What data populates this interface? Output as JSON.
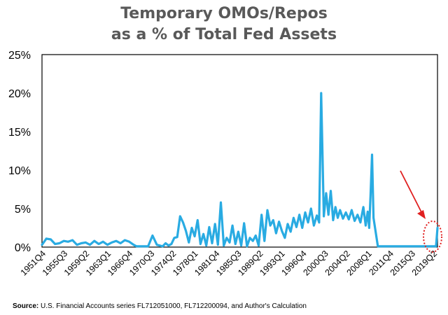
{
  "chart_data": {
    "type": "line",
    "title": "Temporary OMOs/Repos",
    "subtitle": "as a % of Total Fed Assets",
    "ylim": [
      0,
      25
    ],
    "yticks": [
      "0%",
      "5%",
      "10%",
      "15%",
      "20%",
      "25%"
    ],
    "xtick_labels": [
      "1951Q4",
      "1955Q3",
      "1959Q2",
      "1963Q1",
      "1966Q4",
      "1970Q3",
      "1974Q2",
      "1978Q1",
      "1981Q4",
      "1985Q3",
      "1989Q2",
      "1993Q1",
      "1996Q4",
      "2000Q3",
      "2004Q2",
      "2008Q1",
      "2011Q4",
      "2015Q3",
      "2019Q2"
    ],
    "x_start_year": 1951.75,
    "x_end_year": 2019.75,
    "grid": false,
    "line_color": "#29ABE2",
    "series": [
      {
        "x": [
          1951.75,
          1952.5,
          1953.25,
          1954.0,
          1954.75,
          1955.5,
          1956.25,
          1957.0,
          1957.75,
          1958.5,
          1959.25,
          1960.0,
          1960.75,
          1961.5,
          1962.25,
          1963.0,
          1963.75,
          1964.5,
          1965.25,
          1966.0,
          1966.75,
          1967.5,
          1968.0,
          1968.5,
          1969.25,
          1970.0,
          1970.75,
          1971.5,
          1972.0,
          1972.5,
          1973.0,
          1973.5,
          1974.0,
          1974.5,
          1975.0,
          1975.5,
          1976.0,
          1976.5,
          1977.0,
          1977.5,
          1978.0,
          1978.5,
          1979.0,
          1979.5,
          1980.0,
          1980.5,
          1981.0,
          1981.5,
          1982.0,
          1982.5,
          1983.0,
          1983.5,
          1984.0,
          1984.5,
          1985.0,
          1985.5,
          1986.0,
          1986.5,
          1987.0,
          1987.5,
          1988.0,
          1988.5,
          1989.0,
          1989.5,
          1990.0,
          1990.5,
          1991.0,
          1991.5,
          1992.0,
          1992.5,
          1993.0,
          1993.5,
          1994.0,
          1994.5,
          1995.0,
          1995.5,
          1996.0,
          1996.5,
          1997.0,
          1997.5,
          1998.0,
          1998.5,
          1999.0,
          1999.4,
          1999.75,
          2000.2,
          2000.6,
          2001.0,
          2001.4,
          2001.8,
          2002.2,
          2002.6,
          2003.0,
          2003.5,
          2004.0,
          2004.5,
          2005.0,
          2005.5,
          2006.0,
          2006.5,
          2007.0,
          2007.4,
          2007.75,
          2008.0,
          2008.25,
          2008.5,
          2008.75,
          2009.5,
          2011.0,
          2013.0,
          2015.0,
          2017.0,
          2018.5,
          2019.25,
          2019.5,
          2019.75
        ],
        "y": [
          0.3,
          1.1,
          1.0,
          0.4,
          0.5,
          0.8,
          0.7,
          0.9,
          0.3,
          0.5,
          0.6,
          0.3,
          0.8,
          0.4,
          0.7,
          0.3,
          0.6,
          0.8,
          0.5,
          0.9,
          0.7,
          0.3,
          0.1,
          0.1,
          0.1,
          0.1,
          1.5,
          0.3,
          0.2,
          0.1,
          0.5,
          0.2,
          0.4,
          1.2,
          1.3,
          4.0,
          3.2,
          2.1,
          0.6,
          2.5,
          1.4,
          3.5,
          0.4,
          1.7,
          0.2,
          2.6,
          0.5,
          3.0,
          0.3,
          5.8,
          0.2,
          1.2,
          0.6,
          2.8,
          0.4,
          2.0,
          0.2,
          3.1,
          0.1,
          1.2,
          0.8,
          1.5,
          0.2,
          4.2,
          0.8,
          4.8,
          2.8,
          3.5,
          1.8,
          3.3,
          2.1,
          1.2,
          3.0,
          2.0,
          3.8,
          2.6,
          4.2,
          2.5,
          4.5,
          3.2,
          5.0,
          2.8,
          4.1,
          3.2,
          20.0,
          4.0,
          7.0,
          4.2,
          7.3,
          3.5,
          5.2,
          3.8,
          4.8,
          3.7,
          4.5,
          3.6,
          4.8,
          3.4,
          4.2,
          3.2,
          5.2,
          2.8,
          4.6,
          2.5,
          6.8,
          12.0,
          3.8,
          0.1,
          0.1,
          0.1,
          0.1,
          0.1,
          0.1,
          0.1,
          0.1,
          2.5
        ]
      }
    ]
  },
  "source": {
    "label": "Source:",
    "text": "U.S. Financial Accounts series FL712051000, FL712200094, and Author's Calculation"
  },
  "annotation": {
    "arrow_color": "#e02020",
    "ellipse_color": "#e02020"
  }
}
